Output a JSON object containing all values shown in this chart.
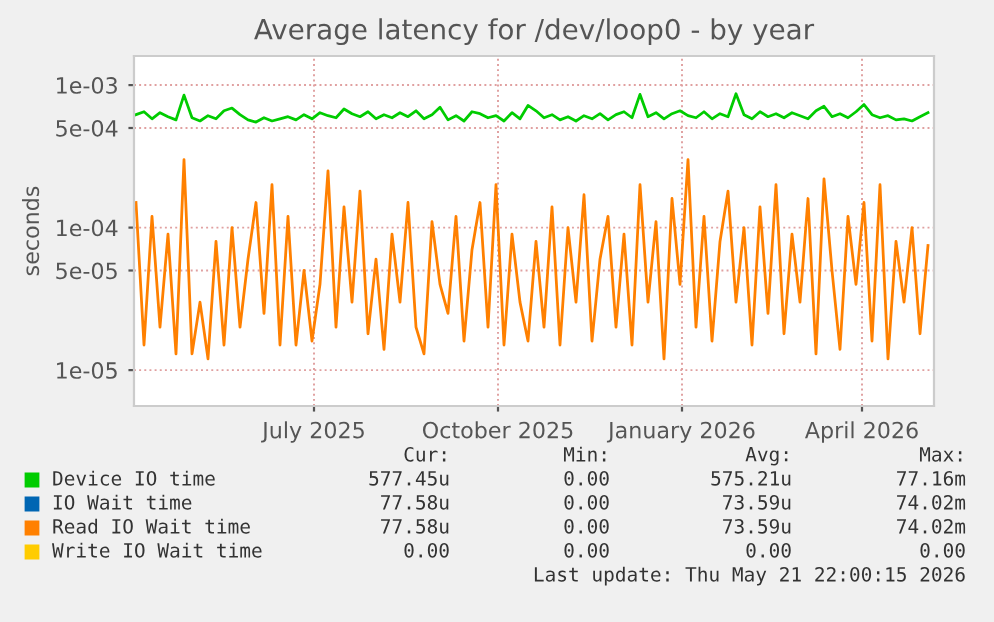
{
  "chart_data": {
    "type": "line",
    "title": "Average latency for /dev/loop0 - by year",
    "ylabel": "seconds",
    "log": "y",
    "grid": true,
    "legend": "bottom",
    "marker": "none",
    "line_style": "solid",
    "xlim": [
      "2025-04-17",
      "2026-05-22"
    ],
    "xticks": [
      {
        "value": "2025-07-16",
        "label": "July 2025"
      },
      {
        "value": "2025-10-16",
        "label": "October 2025"
      },
      {
        "value": "2026-01-16",
        "label": "January 2026"
      },
      {
        "value": "2026-04-16",
        "label": "April 2026"
      }
    ],
    "ylim": [
      5.6e-06,
      0.0016
    ],
    "yticks": [
      {
        "value": 1e-05,
        "label": "1e-05"
      },
      {
        "value": 5e-05,
        "label": "5e-05"
      },
      {
        "value": 0.0001,
        "label": "1e-04"
      },
      {
        "value": 0.0005,
        "label": "5e-04"
      },
      {
        "value": 0.001,
        "label": "1e-03"
      }
    ],
    "x": [
      "2025-04-18",
      "2025-04-22",
      "2025-04-26",
      "2025-04-30",
      "2025-05-04",
      "2025-05-08",
      "2025-05-12",
      "2025-05-16",
      "2025-05-20",
      "2025-05-24",
      "2025-05-28",
      "2025-06-01",
      "2025-06-05",
      "2025-06-09",
      "2025-06-13",
      "2025-06-17",
      "2025-06-21",
      "2025-06-25",
      "2025-06-29",
      "2025-07-03",
      "2025-07-07",
      "2025-07-11",
      "2025-07-15",
      "2025-07-19",
      "2025-07-23",
      "2025-07-27",
      "2025-07-31",
      "2025-08-04",
      "2025-08-08",
      "2025-08-12",
      "2025-08-16",
      "2025-08-20",
      "2025-08-24",
      "2025-08-28",
      "2025-09-01",
      "2025-09-05",
      "2025-09-09",
      "2025-09-13",
      "2025-09-17",
      "2025-09-21",
      "2025-09-25",
      "2025-09-29",
      "2025-10-03",
      "2025-10-07",
      "2025-10-11",
      "2025-10-15",
      "2025-10-19",
      "2025-10-23",
      "2025-10-27",
      "2025-10-31",
      "2025-11-04",
      "2025-11-08",
      "2025-11-12",
      "2025-11-16",
      "2025-11-20",
      "2025-11-24",
      "2025-11-28",
      "2025-12-02",
      "2025-12-06",
      "2025-12-10",
      "2025-12-14",
      "2025-12-18",
      "2025-12-22",
      "2025-12-26",
      "2025-12-30",
      "2026-01-03",
      "2026-01-07",
      "2026-01-11",
      "2026-01-15",
      "2026-01-19",
      "2026-01-23",
      "2026-01-27",
      "2026-01-31",
      "2026-02-04",
      "2026-02-08",
      "2026-02-12",
      "2026-02-16",
      "2026-02-20",
      "2026-02-24",
      "2026-02-28",
      "2026-03-04",
      "2026-03-08",
      "2026-03-12",
      "2026-03-16",
      "2026-03-20",
      "2026-03-24",
      "2026-03-28",
      "2026-04-01",
      "2026-04-05",
      "2026-04-09",
      "2026-04-13",
      "2026-04-17",
      "2026-04-21",
      "2026-04-25",
      "2026-04-29",
      "2026-05-03",
      "2026-05-07",
      "2026-05-11",
      "2026-05-15",
      "2026-05-19"
    ],
    "series": [
      {
        "name": "Device IO time",
        "color": "#00cc00",
        "values": [
          0.00062,
          0.00065,
          0.00058,
          0.00064,
          0.0006,
          0.00057,
          0.00085,
          0.00059,
          0.00056,
          0.00061,
          0.00058,
          0.00066,
          0.00069,
          0.00062,
          0.00057,
          0.00055,
          0.00059,
          0.00056,
          0.00058,
          0.0006,
          0.00057,
          0.00062,
          0.00058,
          0.00064,
          0.00061,
          0.00059,
          0.00068,
          0.00063,
          0.0006,
          0.00065,
          0.00058,
          0.00062,
          0.00059,
          0.00064,
          0.0006,
          0.00066,
          0.00058,
          0.00062,
          0.0007,
          0.00057,
          0.00061,
          0.00056,
          0.00065,
          0.00063,
          0.00059,
          0.00061,
          0.00056,
          0.00064,
          0.00058,
          0.00072,
          0.00066,
          0.00059,
          0.00062,
          0.00057,
          0.0006,
          0.00056,
          0.00061,
          0.00058,
          0.00063,
          0.00057,
          0.00062,
          0.00065,
          0.00059,
          0.00086,
          0.0006,
          0.00064,
          0.00058,
          0.00063,
          0.00066,
          0.00061,
          0.00059,
          0.00065,
          0.00058,
          0.00063,
          0.0006,
          0.00087,
          0.00062,
          0.00058,
          0.00065,
          0.0006,
          0.00063,
          0.00059,
          0.00064,
          0.00061,
          0.00058,
          0.00066,
          0.00071,
          0.0006,
          0.00063,
          0.00059,
          0.00065,
          0.00073,
          0.00062,
          0.00059,
          0.00061,
          0.00057,
          0.00058,
          0.00056,
          0.0006,
          0.00064
        ]
      },
      {
        "name": "IO Wait time",
        "color": "#0066b3",
        "values": [
          null,
          null,
          null,
          null,
          null,
          null,
          null,
          null,
          null,
          null,
          null,
          null,
          null,
          null,
          null,
          null,
          null,
          null,
          null,
          null,
          null,
          null,
          null,
          null,
          null,
          null,
          null,
          null,
          null,
          null,
          null,
          null,
          null,
          null,
          null,
          null,
          null,
          null,
          null,
          null,
          null,
          null,
          null,
          null,
          null,
          null,
          null,
          null,
          null,
          null,
          null,
          null,
          null,
          null,
          null,
          null,
          null,
          null,
          null,
          null,
          null,
          null,
          null,
          null,
          null,
          null,
          null,
          null,
          null,
          null,
          null,
          null,
          null,
          null,
          null,
          null,
          null,
          null,
          null,
          null,
          null,
          null,
          null,
          null,
          null,
          null,
          null,
          null,
          null,
          null,
          null,
          null,
          null,
          null,
          null,
          null,
          null,
          null,
          null,
          null
        ]
      },
      {
        "name": "Read IO Wait time",
        "color": "#ff8000",
        "values": [
          0.00015,
          1.5e-05,
          0.00012,
          2e-05,
          9e-05,
          1.3e-05,
          0.0003,
          1.3e-05,
          3e-05,
          1.2e-05,
          8e-05,
          1.5e-05,
          0.0001,
          2e-05,
          6e-05,
          0.00015,
          2.5e-05,
          0.0002,
          1.5e-05,
          0.00012,
          1.5e-05,
          5e-05,
          1.6e-05,
          4e-05,
          0.00025,
          2e-05,
          0.00014,
          3e-05,
          0.00018,
          1.8e-05,
          6e-05,
          1.4e-05,
          9e-05,
          3e-05,
          0.00015,
          2e-05,
          1.3e-05,
          0.00011,
          4e-05,
          2.5e-05,
          0.00012,
          1.6e-05,
          7e-05,
          0.00015,
          2e-05,
          0.0002,
          1.5e-05,
          9e-05,
          3e-05,
          1.6e-05,
          8e-05,
          2e-05,
          0.00014,
          1.5e-05,
          0.0001,
          3e-05,
          0.00017,
          1.6e-05,
          6e-05,
          0.00012,
          2e-05,
          9e-05,
          1.5e-05,
          0.0002,
          3e-05,
          0.00011,
          1.2e-05,
          0.00016,
          4e-05,
          0.0003,
          2e-05,
          0.00012,
          1.6e-05,
          8e-05,
          0.00018,
          3e-05,
          0.0001,
          1.5e-05,
          0.00014,
          2.5e-05,
          0.0002,
          1.8e-05,
          9e-05,
          3e-05,
          0.00016,
          1.3e-05,
          0.00022,
          5e-05,
          1.4e-05,
          0.00012,
          4e-05,
          0.00015,
          1.6e-05,
          0.0002,
          1.2e-05,
          8e-05,
          3e-05,
          0.0001,
          1.8e-05,
          7.5e-05
        ]
      },
      {
        "name": "Write IO Wait time",
        "color": "#ffcc00",
        "values": [
          null,
          null,
          null,
          null,
          null,
          null,
          null,
          null,
          null,
          null,
          null,
          null,
          null,
          null,
          null,
          null,
          null,
          null,
          null,
          null,
          null,
          null,
          null,
          null,
          null,
          null,
          null,
          null,
          null,
          null,
          null,
          null,
          null,
          null,
          null,
          null,
          null,
          null,
          null,
          null,
          null,
          null,
          null,
          null,
          null,
          null,
          null,
          null,
          null,
          null,
          null,
          null,
          null,
          null,
          null,
          null,
          null,
          null,
          null,
          null,
          null,
          null,
          null,
          null,
          null,
          null,
          null,
          null,
          null,
          null,
          null,
          null,
          null,
          null,
          null,
          null,
          null,
          null,
          null,
          null,
          null,
          null,
          null,
          null,
          null,
          null,
          null,
          null,
          null,
          null,
          null,
          null,
          null,
          null,
          null,
          null,
          null,
          null,
          null,
          null
        ]
      }
    ],
    "annotations": [
      "Cur:",
      "Min:",
      "Avg:",
      "Max:",
      "577.45u",
      "0.00",
      "575.21u",
      "77.16m",
      "77.58u",
      "0.00",
      "73.59u",
      "74.02m",
      "77.58u",
      "0.00",
      "73.59u",
      "74.02m",
      "0.00",
      "0.00",
      "0.00",
      "0.00",
      "Last update: Thu May 21 22:00:15 2026"
    ]
  }
}
